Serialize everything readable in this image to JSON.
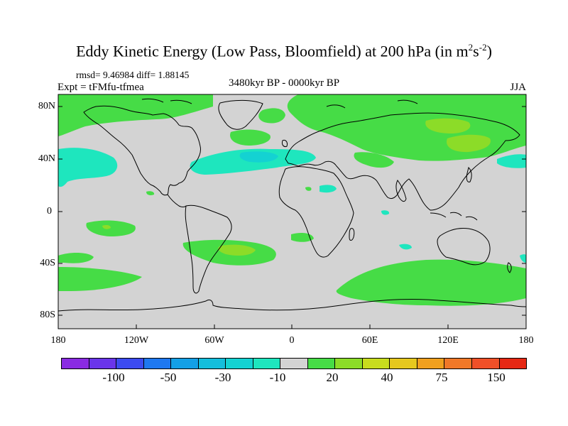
{
  "header": {
    "title_main": "Eddy Kinetic Energy (Low Pass, Bloomfield) at 200 hPa (in m",
    "title_sup1": "2",
    "title_mid": "s",
    "title_sup2": "-2",
    "title_end": ")",
    "stats": "rmsd= 9.46984 diff= 1.88145",
    "experiment": "Expt = tFMfu-tfmea",
    "period": "3480kyr BP - 0000kyr BP",
    "season": "JJA"
  },
  "map": {
    "lat_labels": [
      "80N",
      "40N",
      "0",
      "40S",
      "80S"
    ],
    "lon_labels": [
      "180",
      "120W",
      "60W",
      "0",
      "60E",
      "120E",
      "180"
    ],
    "background_color": "#d3d3d3",
    "coastline_color": "#000000"
  },
  "colorbar": {
    "colors": [
      "#8a2be2",
      "#6a35ea",
      "#3c4bf0",
      "#1e78f0",
      "#14a0e6",
      "#14bedc",
      "#14d2d2",
      "#1ee6be",
      "#d3d3d3",
      "#46dc46",
      "#8cdc28",
      "#c8dc1e",
      "#e6c81e",
      "#f0a01e",
      "#f07828",
      "#f05028",
      "#e62814"
    ],
    "labels": [
      "-100",
      "-50",
      "-30",
      "-10",
      "20",
      "40",
      "75",
      "150"
    ]
  }
}
